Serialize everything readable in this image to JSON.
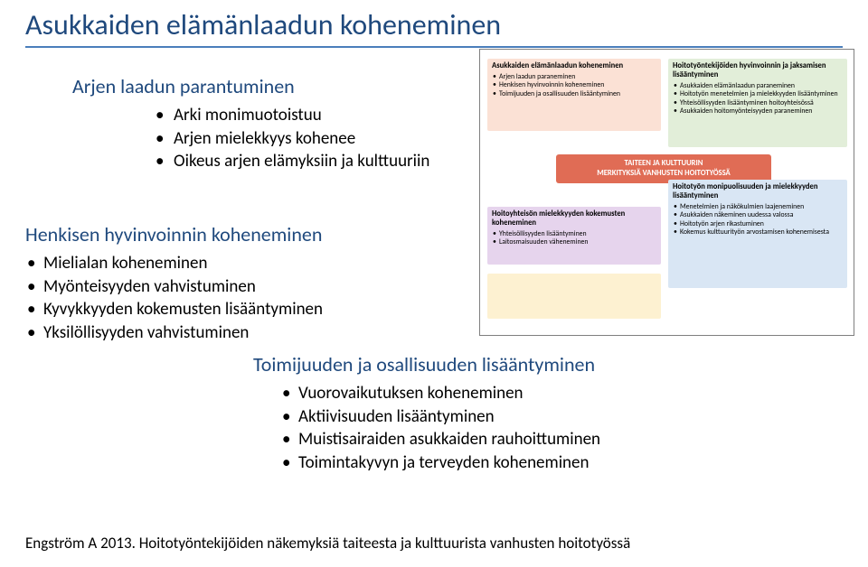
{
  "title": "Asukkaiden elämänlaadun koheneminen",
  "block1": {
    "heading": "Arjen laadun parantuminen",
    "items": [
      "Arki monimuotoistuu",
      "Arjen mielekkyys kohenee",
      "Oikeus arjen elämyksiin ja kulttuuriin"
    ]
  },
  "block2": {
    "heading": "Henkisen hyvinvoinnin koheneminen",
    "items": [
      "Mielialan koheneminen",
      "Myönteisyyden vahvistuminen",
      "Kyvykkyyden kokemusten lisääntyminen",
      "Yksilöllisyyden vahvistuminen"
    ]
  },
  "block3": {
    "heading": "Toimijuuden ja osallisuuden lisääntyminen",
    "items": [
      "Vuorovaikutuksen koheneminen",
      "Aktiivisuuden lisääntyminen",
      "Muistisairaiden asukkaiden rauhoittuminen",
      "Toimintakyvyn ja terveyden koheneminen"
    ]
  },
  "diagram": {
    "center": {
      "l1": "TAITEEN JA KULTTUURIN",
      "l2": "MERKITYKSIÄ VANHUSTEN HOITOTYÖSSÄ"
    },
    "tl": {
      "heading": "Asukkaiden elämänlaadun koheneminen",
      "items": [
        "Arjen laadun paraneminen",
        "Henkisen hyvinvoinnin koheneminen",
        "Toimijuuden ja osallisuuden lisääntyminen"
      ]
    },
    "tr": {
      "heading": "Hoitotyöntekijöiden hyvinvoinnin ja jaksamisen lisääntyminen",
      "items": [
        "Asukkaiden elämänlaadun paraneminen",
        "Hoitotyön menetelmien ja mielekkyyden lisääntyminen",
        "Yhteisöllisyyden lisääntyminen hoitoyhteisössä",
        "Asukkaiden hoitomyönteisyyden paraneminen"
      ]
    },
    "ml": {
      "heading": "Hoitoyhteisön mielekkyyden kokemusten koheneminen",
      "items": [
        "Yhteisöllisyyden lisääntyminen",
        "Laitosmaisuuden väheneminen"
      ]
    },
    "mr": {
      "heading": "Hoitotyön monipuolisuuden ja mielekkyyden lisääntyminen",
      "items": [
        "Menetelmien ja näkökulmien laajeneminen",
        "Asukkaiden näkeminen uudessa valossa",
        "Hoitotyön arjen rikastuminen",
        "Kokemus kulttuurityön arvostamisen kohenemisesta"
      ]
    },
    "bl": {
      "heading": "",
      "items": []
    }
  },
  "citation": "Engström A 2013. Hoitotyöntekijöiden näkemyksiä taiteesta ja kulttuurista vanhusten hoitotyössä",
  "colors": {
    "title": "#1f497d",
    "underline": "#4a7ebb",
    "box_tl": "#fbe1d5",
    "box_tr": "#e2eed9",
    "box_ml": "#e6d4ed",
    "box_mr": "#d9e6f4",
    "box_bl": "#fdf1d1",
    "box_center": "#e06c55"
  }
}
